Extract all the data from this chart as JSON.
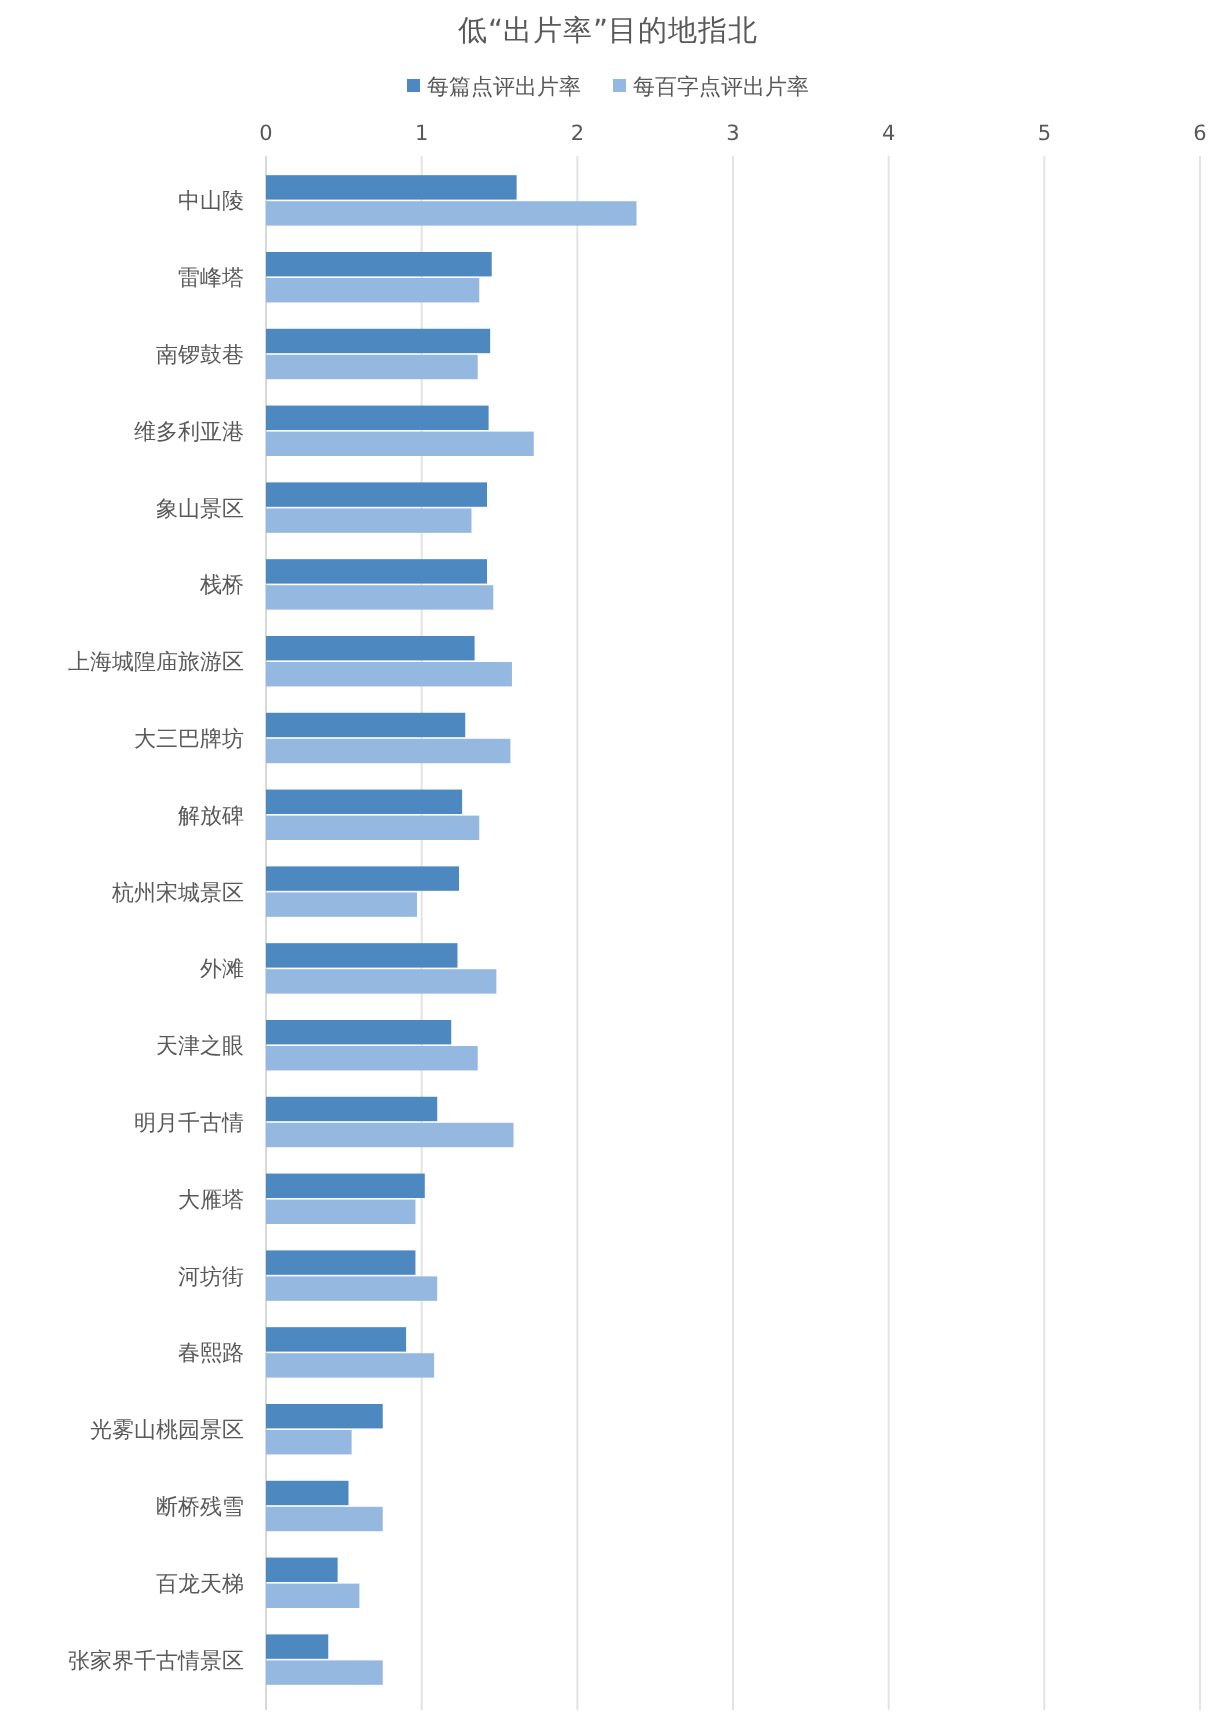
{
  "chart_data": {
    "type": "bar",
    "orientation": "horizontal",
    "title": "低“出片率”目的地指北",
    "categories": [
      "中山陵",
      "雷峰塔",
      "南锣鼓巷",
      "维多利亚港",
      "象山景区",
      "栈桥",
      "上海城隍庙旅游区",
      "大三巴牌坊",
      "解放碑",
      "杭州宋城景区",
      "外滩",
      "天津之眼",
      "明月千古情",
      "大雁塔",
      "河坊街",
      "春熙路",
      "光雾山桃园景区",
      "断桥残雪",
      "百龙天梯",
      "张家界千古情景区"
    ],
    "series": [
      {
        "name": "每篇点评出片率",
        "color": "#4d88c0",
        "values": [
          1.61,
          1.45,
          1.44,
          1.43,
          1.42,
          1.42,
          1.34,
          1.28,
          1.26,
          1.24,
          1.23,
          1.19,
          1.1,
          1.02,
          0.96,
          0.9,
          0.75,
          0.53,
          0.46,
          0.4
        ]
      },
      {
        "name": "每百字点评出片率",
        "color": "#95b8e0",
        "values": [
          2.38,
          1.37,
          1.36,
          1.72,
          1.32,
          1.46,
          1.58,
          1.57,
          1.37,
          0.97,
          1.48,
          1.36,
          1.59,
          0.96,
          1.1,
          1.08,
          0.55,
          0.75,
          0.6,
          0.75
        ]
      }
    ],
    "xlim": [
      0,
      6
    ],
    "xticks": [
      0,
      1,
      2,
      3,
      4,
      5,
      6
    ],
    "grid": "x",
    "legend": "top"
  }
}
